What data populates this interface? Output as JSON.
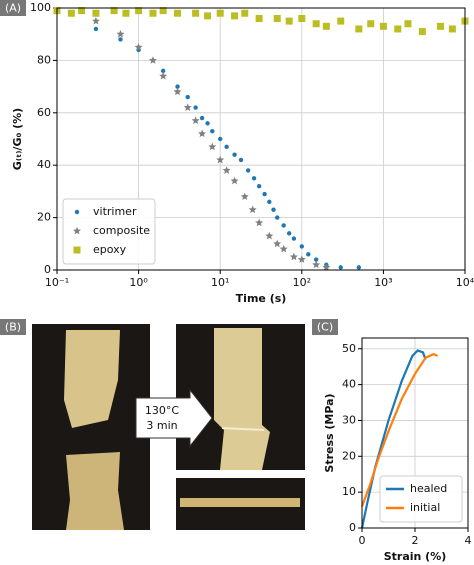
{
  "panels": {
    "a": "(A)",
    "b": "(B)",
    "c": "(C)"
  },
  "arrow_text": [
    "130°C",
    "3 min"
  ],
  "chart_data": [
    {
      "type": "scatter",
      "xscale": "log",
      "grid": true,
      "legend": "lower left",
      "xlabel": "Time (s)",
      "ylabel": "G₍ₜ₎/G₀ (%)",
      "xlim": [
        0.1,
        10000
      ],
      "xticks": [
        {
          "value": 0.1,
          "label": "10⁻¹"
        },
        {
          "value": 1,
          "label": "10⁰"
        },
        {
          "value": 10,
          "label": "10¹"
        },
        {
          "value": 100,
          "label": "10²"
        },
        {
          "value": 1000,
          "label": "10³"
        },
        {
          "value": 10000,
          "label": "10⁴"
        }
      ],
      "ylim": [
        0,
        100
      ],
      "yticks": [
        0,
        20,
        40,
        60,
        80,
        100
      ],
      "series": [
        {
          "name": "vitrimer",
          "color": "#1f77b4",
          "marker": "circle",
          "x": [
            0.3,
            0.6,
            1,
            2,
            3,
            4,
            5,
            6,
            7,
            8,
            10,
            12,
            15,
            18,
            22,
            26,
            30,
            35,
            40,
            45,
            50,
            60,
            70,
            80,
            100,
            120,
            150,
            200,
            300,
            500
          ],
          "values": [
            92,
            88,
            84,
            76,
            70,
            66,
            62,
            58,
            56,
            53,
            50,
            47,
            44,
            42,
            38,
            35,
            32,
            29,
            26,
            23,
            20,
            17,
            14,
            12,
            9,
            6,
            4,
            2,
            1,
            1
          ]
        },
        {
          "name": "composite",
          "color": "#808080",
          "marker": "star",
          "x": [
            0.3,
            0.6,
            1,
            1.5,
            2,
            3,
            4,
            5,
            6,
            8,
            10,
            12,
            15,
            20,
            25,
            30,
            40,
            50,
            60,
            80,
            100,
            150,
            200
          ],
          "values": [
            95,
            90,
            85,
            80,
            74,
            68,
            62,
            57,
            52,
            47,
            42,
            38,
            34,
            28,
            23,
            18,
            13,
            10,
            8,
            5,
            4,
            2,
            1
          ]
        },
        {
          "name": "epoxy",
          "color": "#bcbd22",
          "marker": "square",
          "x": [
            0.1,
            0.15,
            0.2,
            0.3,
            0.5,
            0.7,
            1,
            1.5,
            2,
            3,
            5,
            7,
            10,
            15,
            20,
            30,
            50,
            70,
            100,
            150,
            200,
            300,
            500,
            700,
            1000,
            1500,
            2000,
            3000,
            5000,
            7000,
            10000
          ],
          "values": [
            99,
            98,
            99,
            98,
            99,
            98,
            99,
            98,
            99,
            98,
            98,
            97,
            98,
            97,
            98,
            96,
            96,
            95,
            96,
            94,
            93,
            95,
            92,
            94,
            93,
            92,
            94,
            91,
            93,
            92,
            95
          ]
        }
      ]
    },
    {
      "type": "line",
      "grid": true,
      "legend": "lower right",
      "xlabel": "Strain (%)",
      "ylabel": "Stress (MPa)",
      "xlim": [
        0,
        4
      ],
      "xticks": [
        0,
        2,
        4
      ],
      "ylim": [
        0,
        53
      ],
      "yticks": [
        0,
        10,
        20,
        30,
        40,
        50
      ],
      "series": [
        {
          "name": "healed",
          "color": "#1f77b4",
          "x": [
            0,
            0.2,
            0.5,
            1,
            1.5,
            1.9,
            2.1,
            2.3,
            2.4
          ],
          "values": [
            0,
            7,
            17,
            30,
            41,
            48,
            49.5,
            49,
            47
          ]
        },
        {
          "name": "initial",
          "color": "#ff7f0e",
          "x": [
            0,
            0.3,
            0.6,
            1,
            1.5,
            2,
            2.4,
            2.7,
            2.85
          ],
          "values": [
            6,
            12,
            19,
            27,
            36,
            43,
            47.5,
            48.5,
            48
          ]
        }
      ]
    }
  ]
}
